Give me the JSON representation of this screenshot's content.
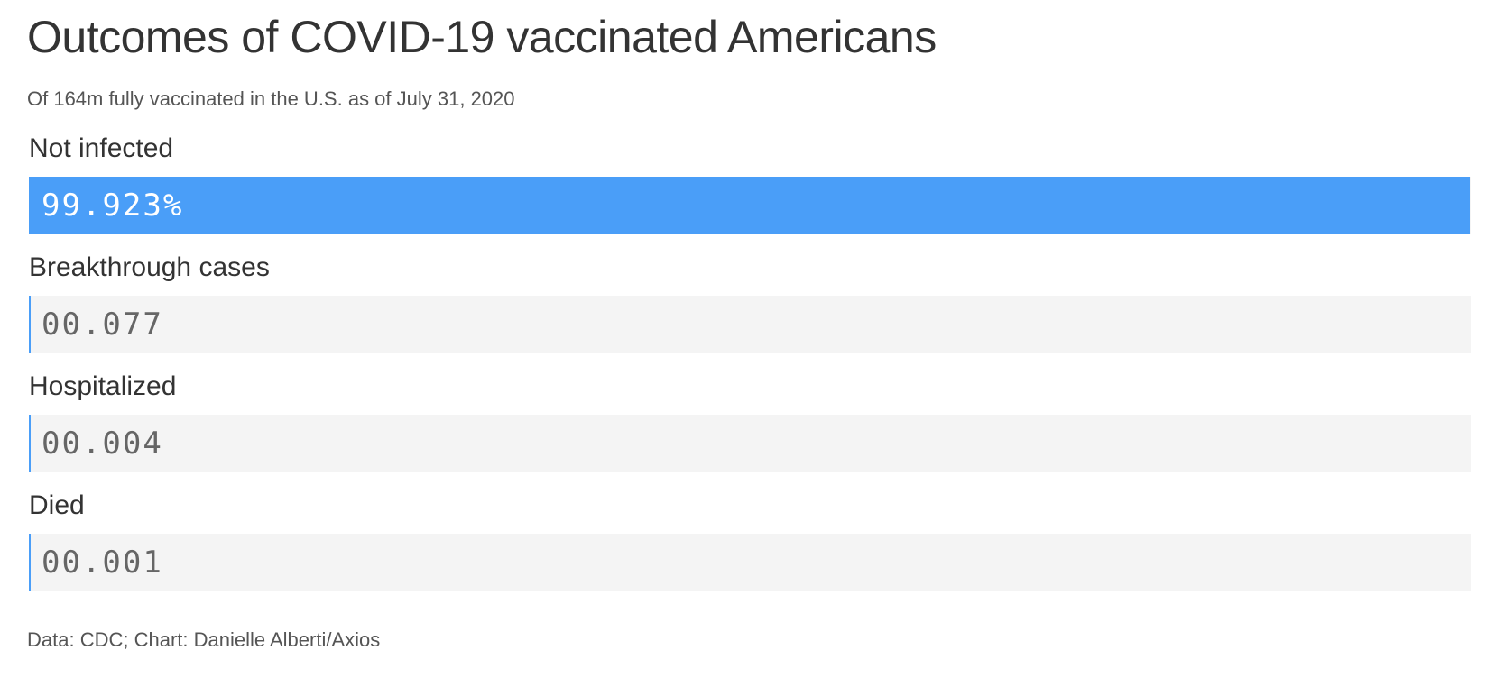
{
  "chart_data": {
    "type": "bar",
    "title": "Outcomes of COVID-19 vaccinated Americans",
    "subtitle": "Of 164m fully vaccinated in the U.S. as of July 31, 2020",
    "categories": [
      "Not infected",
      "Breakthrough cases",
      "Hospitalized",
      "Died"
    ],
    "values": [
      99.923,
      0.077,
      0.004,
      0.001
    ],
    "value_labels": [
      "99.923%",
      "00.077",
      "00.004",
      "00.001"
    ],
    "unit": "%",
    "xlim": [
      0,
      100
    ],
    "orientation": "horizontal",
    "source": "Data: CDC; Chart: Danielle Alberti/Axios"
  },
  "colors": {
    "bar_fill": "#4a9ef8",
    "track": "#f4f4f4",
    "label_on_fill": "#ffffff",
    "label_on_track": "#666666"
  }
}
